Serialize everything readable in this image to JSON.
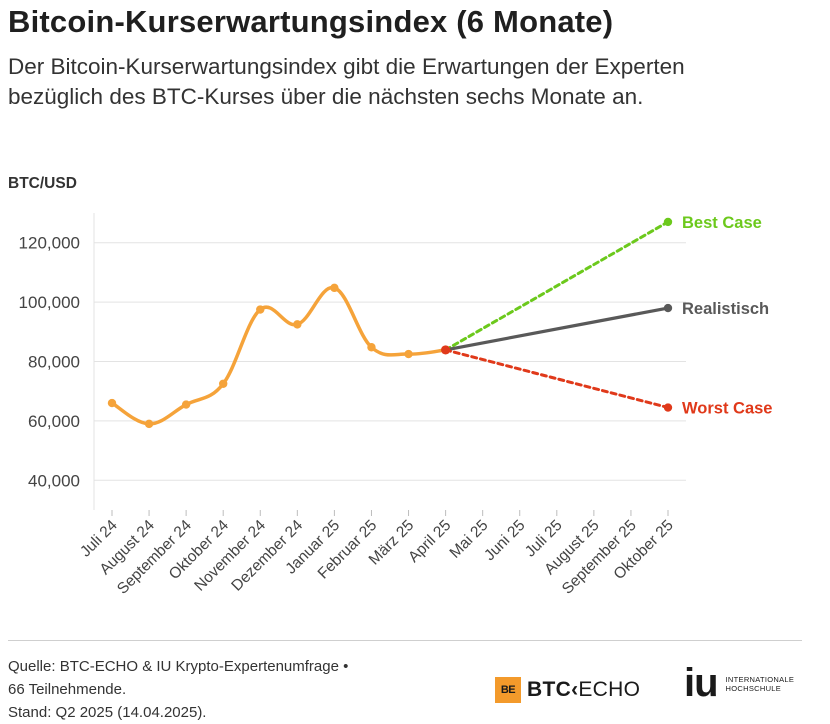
{
  "header": {
    "title": "Bitcoin-Kurserwartungsindex (6 Monate)",
    "subtitle": "Der Bitcoin-Kurserwartungsindex gibt die Erwartungen der Experten bezüglich des BTC-Kurses über die nächsten sechs Monate an."
  },
  "chart_data": {
    "type": "line",
    "title": "Bitcoin-Kurserwartungsindex (6 Monate)",
    "ylabel": "BTC/USD",
    "xlabel": "",
    "ylim": [
      30000,
      130000
    ],
    "yticks": [
      40000,
      60000,
      80000,
      100000,
      120000
    ],
    "ytick_labels": [
      "40,000",
      "60,000",
      "80,000",
      "100,000",
      "120,000"
    ],
    "categories": [
      "Juli 24",
      "August 24",
      "September 24",
      "Oktober 24",
      "November 24",
      "Dezember 24",
      "Januar 25",
      "Februar 25",
      "März 25",
      "April 25",
      "Mai 25",
      "Juni 25",
      "Juli 25",
      "August 25",
      "September 25",
      "Oktober 25"
    ],
    "grid": true,
    "series": [
      {
        "name": "BTC/USD",
        "color": "#f5a33a",
        "style": "solid-smooth",
        "x": [
          "Juli 24",
          "August 24",
          "September 24",
          "Oktober 24",
          "November 24",
          "Dezember 24",
          "Januar 25",
          "Februar 25",
          "März 25",
          "April 25"
        ],
        "values": [
          66000,
          59000,
          65500,
          72500,
          97500,
          92500,
          104800,
          84800,
          82500,
          83900
        ]
      },
      {
        "name": "Best Case",
        "color": "#6cc91c",
        "style": "dashed",
        "x": [
          "April 25",
          "Oktober 25"
        ],
        "values": [
          83900,
          127000
        ]
      },
      {
        "name": "Realistisch",
        "color": "#595959",
        "style": "solid",
        "x": [
          "April 25",
          "Oktober 25"
        ],
        "values": [
          83900,
          98000
        ]
      },
      {
        "name": "Worst Case",
        "color": "#e0391a",
        "style": "dashed",
        "x": [
          "April 25",
          "Oktober 25"
        ],
        "values": [
          83900,
          64500
        ]
      }
    ]
  },
  "footer": {
    "source_line1": "Quelle: BTC-ECHO & IU Krypto-Expertenumfrage •",
    "source_line2": "66 Teilnehmende.",
    "source_line3": "Stand: Q2 2025 (14.04.2025).",
    "logo_btc_badge": "BE",
    "logo_btc_bold": "BTC",
    "logo_btc_arrow": "‹",
    "logo_btc_light": "ECHO",
    "logo_iu_mark": "iu",
    "logo_iu_line1": "INTERNATIONALE",
    "logo_iu_line2": "HOCHSCHULE"
  }
}
